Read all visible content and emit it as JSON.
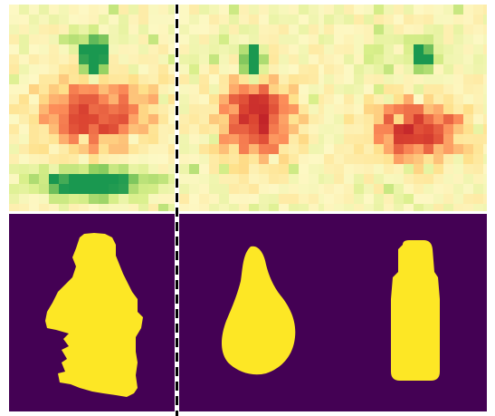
{
  "figure": {
    "rows": [
      {
        "kind": "heatmap",
        "colormap": "RdYlGn",
        "colors": {
          "background": "#fdf7c2",
          "hot": "#c9302b",
          "cold": "#3a9a4e"
        },
        "panels": [
          {
            "name": "heatmap-panel-1"
          },
          {
            "name": "heatmap-panel-2"
          },
          {
            "name": "heatmap-panel-3"
          }
        ]
      },
      {
        "kind": "segmentation-mask",
        "colormap": "viridis",
        "colors": {
          "background": "#440154",
          "foreground": "#fde725"
        },
        "panels": [
          {
            "name": "mask-panel-1",
            "shape": "irregular-figure"
          },
          {
            "name": "mask-panel-2",
            "shape": "pear"
          },
          {
            "name": "mask-panel-3",
            "shape": "rounded-column"
          }
        ]
      }
    ],
    "divider": {
      "style": "dashed",
      "color": "#000000"
    }
  }
}
